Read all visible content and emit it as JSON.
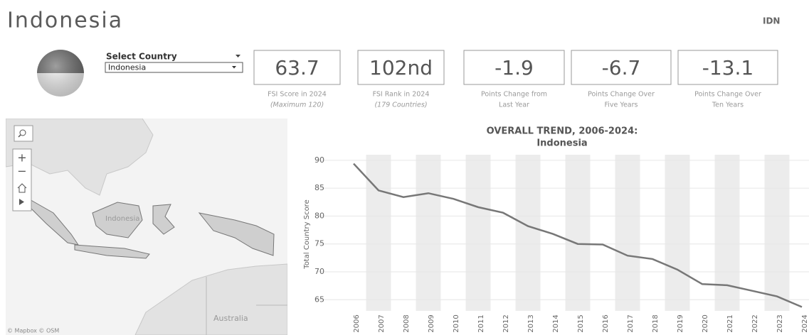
{
  "header": {
    "title": "Indonesia",
    "code": "IDN"
  },
  "selector": {
    "label": "Select Country",
    "value": "Indonesia"
  },
  "kpis": [
    {
      "value": 63.7,
      "label": "FSI Score in 2024",
      "note": "(Maximum 120)"
    },
    {
      "value": "102nd",
      "label": "FSI Rank in 2024",
      "note": "(179 Countries)"
    },
    {
      "value": -1.9,
      "label": "Points Change from",
      "note": "Last Year"
    },
    {
      "value": -6.7,
      "label": "Points Change Over",
      "note": "Five Years"
    },
    {
      "value": -13.1,
      "label": "Points Change Over",
      "note": "Ten Years"
    }
  ],
  "map": {
    "labels": [
      "Indonesia",
      "Australia"
    ],
    "credit": "© Mapbox  © OSM"
  },
  "chart_data": {
    "type": "line",
    "title": "OVERALL TREND, 2006-2024:",
    "subtitle": "Indonesia",
    "y_label": "Total Country Score",
    "categories": [
      "2006",
      "2007",
      "2008",
      "2009",
      "2010",
      "2011",
      "2012",
      "2013",
      "2014",
      "2015",
      "2016",
      "2017",
      "2018",
      "2019",
      "2020",
      "2021",
      "2022",
      "2023",
      "2024"
    ],
    "values": [
      89.4,
      84.6,
      83.4,
      84.1,
      83.1,
      81.6,
      80.6,
      78.2,
      76.8,
      75.0,
      74.9,
      72.9,
      72.3,
      70.4,
      67.8,
      67.6,
      66.6,
      65.6,
      63.7
    ],
    "color": "#777777",
    "ylim": [
      63,
      91
    ],
    "yticks": [
      65,
      70,
      75,
      80,
      85,
      90
    ],
    "grid": true
  }
}
